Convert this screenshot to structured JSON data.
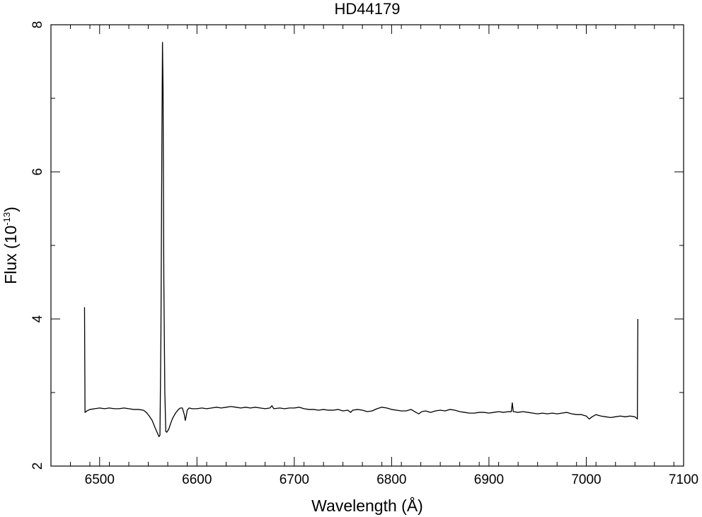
{
  "chart_data": {
    "type": "line",
    "title": "HD44179",
    "xlabel": "Wavelength (Å)",
    "ylabel_main": "Flux (10",
    "ylabel_exp": "-13",
    "ylabel_close": ")",
    "xlim": [
      6450,
      7100
    ],
    "ylim": [
      2,
      8
    ],
    "x_ticks": [
      6500,
      6600,
      6700,
      6800,
      6900,
      7000,
      7100
    ],
    "y_ticks": [
      2,
      4,
      6,
      8
    ],
    "x_minor_step": 20,
    "y_minor_step": 1,
    "grid": false,
    "series": [
      {
        "points": [
          [
            6484.5,
            4.16
          ],
          [
            6485.0,
            2.73
          ],
          [
            6487,
            2.75
          ],
          [
            6490,
            2.77
          ],
          [
            6495,
            2.78
          ],
          [
            6500,
            2.79
          ],
          [
            6505,
            2.78
          ],
          [
            6510,
            2.79
          ],
          [
            6515,
            2.78
          ],
          [
            6520,
            2.78
          ],
          [
            6525,
            2.79
          ],
          [
            6530,
            2.78
          ],
          [
            6535,
            2.77
          ],
          [
            6540,
            2.77
          ],
          [
            6545,
            2.76
          ],
          [
            6548,
            2.73
          ],
          [
            6551,
            2.68
          ],
          [
            6554,
            2.62
          ],
          [
            6557,
            2.52
          ],
          [
            6560,
            2.43
          ],
          [
            6561,
            2.4
          ],
          [
            6562,
            2.42
          ],
          [
            6563,
            3.8
          ],
          [
            6564,
            6.5
          ],
          [
            6564.6,
            7.76
          ],
          [
            6565.2,
            7.1
          ],
          [
            6566,
            4.5
          ],
          [
            6567,
            3.0
          ],
          [
            6568,
            2.47
          ],
          [
            6569,
            2.46
          ],
          [
            6571,
            2.5
          ],
          [
            6573,
            2.58
          ],
          [
            6575,
            2.65
          ],
          [
            6578,
            2.72
          ],
          [
            6581,
            2.77
          ],
          [
            6583,
            2.79
          ],
          [
            6585,
            2.79
          ],
          [
            6587,
            2.7
          ],
          [
            6588,
            2.62
          ],
          [
            6589,
            2.68
          ],
          [
            6590,
            2.76
          ],
          [
            6592,
            2.79
          ],
          [
            6595,
            2.78
          ],
          [
            6600,
            2.78
          ],
          [
            6605,
            2.79
          ],
          [
            6610,
            2.78
          ],
          [
            6615,
            2.79
          ],
          [
            6620,
            2.8
          ],
          [
            6625,
            2.79
          ],
          [
            6630,
            2.8
          ],
          [
            6635,
            2.81
          ],
          [
            6640,
            2.8
          ],
          [
            6645,
            2.79
          ],
          [
            6650,
            2.8
          ],
          [
            6655,
            2.79
          ],
          [
            6660,
            2.8
          ],
          [
            6665,
            2.79
          ],
          [
            6670,
            2.78
          ],
          [
            6675,
            2.79
          ],
          [
            6677,
            2.82
          ],
          [
            6679,
            2.78
          ],
          [
            6685,
            2.79
          ],
          [
            6690,
            2.78
          ],
          [
            6695,
            2.79
          ],
          [
            6700,
            2.79
          ],
          [
            6705,
            2.8
          ],
          [
            6710,
            2.78
          ],
          [
            6715,
            2.77
          ],
          [
            6720,
            2.77
          ],
          [
            6725,
            2.76
          ],
          [
            6730,
            2.77
          ],
          [
            6735,
            2.76
          ],
          [
            6740,
            2.76
          ],
          [
            6745,
            2.77
          ],
          [
            6750,
            2.75
          ],
          [
            6755,
            2.76
          ],
          [
            6758,
            2.73
          ],
          [
            6760,
            2.76
          ],
          [
            6765,
            2.77
          ],
          [
            6770,
            2.76
          ],
          [
            6775,
            2.74
          ],
          [
            6780,
            2.75
          ],
          [
            6785,
            2.78
          ],
          [
            6790,
            2.8
          ],
          [
            6795,
            2.79
          ],
          [
            6800,
            2.77
          ],
          [
            6805,
            2.76
          ],
          [
            6810,
            2.75
          ],
          [
            6815,
            2.75
          ],
          [
            6820,
            2.77
          ],
          [
            6825,
            2.73
          ],
          [
            6828,
            2.71
          ],
          [
            6831,
            2.74
          ],
          [
            6835,
            2.75
          ],
          [
            6840,
            2.73
          ],
          [
            6845,
            2.75
          ],
          [
            6850,
            2.76
          ],
          [
            6855,
            2.75
          ],
          [
            6860,
            2.77
          ],
          [
            6865,
            2.76
          ],
          [
            6870,
            2.74
          ],
          [
            6875,
            2.73
          ],
          [
            6880,
            2.72
          ],
          [
            6885,
            2.72
          ],
          [
            6890,
            2.73
          ],
          [
            6895,
            2.73
          ],
          [
            6900,
            2.72
          ],
          [
            6905,
            2.73
          ],
          [
            6910,
            2.74
          ],
          [
            6915,
            2.73
          ],
          [
            6920,
            2.74
          ],
          [
            6923,
            2.74
          ],
          [
            6924,
            2.86
          ],
          [
            6925,
            2.74
          ],
          [
            6930,
            2.73
          ],
          [
            6935,
            2.74
          ],
          [
            6940,
            2.73
          ],
          [
            6945,
            2.72
          ],
          [
            6950,
            2.71
          ],
          [
            6955,
            2.72
          ],
          [
            6960,
            2.71
          ],
          [
            6965,
            2.72
          ],
          [
            6970,
            2.71
          ],
          [
            6975,
            2.72
          ],
          [
            6980,
            2.73
          ],
          [
            6985,
            2.71
          ],
          [
            6990,
            2.7
          ],
          [
            6995,
            2.7
          ],
          [
            7000,
            2.68
          ],
          [
            7003,
            2.64
          ],
          [
            7006,
            2.67
          ],
          [
            7010,
            2.7
          ],
          [
            7015,
            2.68
          ],
          [
            7020,
            2.67
          ],
          [
            7025,
            2.66
          ],
          [
            7030,
            2.67
          ],
          [
            7035,
            2.68
          ],
          [
            7040,
            2.67
          ],
          [
            7045,
            2.68
          ],
          [
            7050,
            2.67
          ],
          [
            7052.5,
            2.64
          ],
          [
            7053.0,
            4.0
          ]
        ]
      }
    ]
  }
}
